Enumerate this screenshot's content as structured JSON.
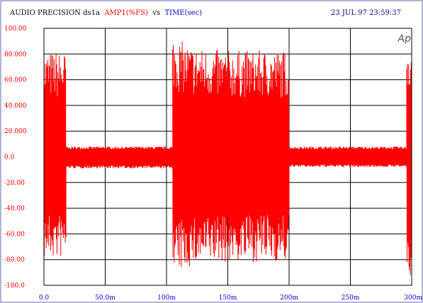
{
  "header": {
    "instrument": "AUDIO PRECISION",
    "file": "ds1a",
    "y_quantity": "AMP1(%FS)",
    "vs": "vs",
    "x_quantity": "TIME(sec)",
    "timestamp": "23 JUL 97 23:59:37"
  },
  "logo_text": "Ap",
  "colors": {
    "background": "#ffffff",
    "grid": "#000000",
    "trace": "#ff0000",
    "y_tick_labels": "#ff0000",
    "x_tick_labels": "#0000cc",
    "header_text": "#000080"
  },
  "chart_data": {
    "type": "line",
    "title": "AUDIO PRECISION ds1a AMP1(%FS) vs TIME(sec)",
    "xlabel": "TIME(sec)",
    "ylabel": "AMP1(%FS)",
    "xlim": [
      0,
      0.3
    ],
    "ylim": [
      -100,
      100
    ],
    "grid": true,
    "x_ticks": [
      {
        "value": 0.0,
        "label": "0.0"
      },
      {
        "value": 0.05,
        "label": "50.0m"
      },
      {
        "value": 0.1,
        "label": "100m"
      },
      {
        "value": 0.15,
        "label": "150m"
      },
      {
        "value": 0.2,
        "label": "200m"
      },
      {
        "value": 0.25,
        "label": "250m"
      },
      {
        "value": 0.3,
        "label": "300m"
      }
    ],
    "y_ticks": [
      {
        "value": 100,
        "label": "100.00"
      },
      {
        "value": 80,
        "label": "80.000"
      },
      {
        "value": 60,
        "label": "60.000"
      },
      {
        "value": 40,
        "label": "40.000"
      },
      {
        "value": 20,
        "label": "20.000"
      },
      {
        "value": 0,
        "label": "0.0"
      },
      {
        "value": -20,
        "label": "-20.00"
      },
      {
        "value": -40,
        "label": "-40.00"
      },
      {
        "value": -60,
        "label": "-60.00"
      },
      {
        "value": -80,
        "label": "-80.00"
      },
      {
        "value": -100,
        "label": "-100.0"
      }
    ],
    "series": [
      {
        "color": "#ff0000",
        "segments": [
          {
            "x_start": 0.0,
            "x_end": 0.018,
            "pos_peak": 82,
            "neg_peak": -80
          },
          {
            "x_start": 0.018,
            "x_end": 0.105,
            "pos_peak": 8,
            "neg_peak": -9
          },
          {
            "x_start": 0.105,
            "x_end": 0.2,
            "pos_peak": 83,
            "neg_peak": -82,
            "onset_pos_peak": 96,
            "onset_neg_peak": -95
          },
          {
            "x_start": 0.2,
            "x_end": 0.296,
            "pos_peak": 8,
            "neg_peak": -8
          },
          {
            "x_start": 0.296,
            "x_end": 0.3,
            "pos_peak": 93,
            "neg_peak": -96
          }
        ]
      }
    ]
  }
}
